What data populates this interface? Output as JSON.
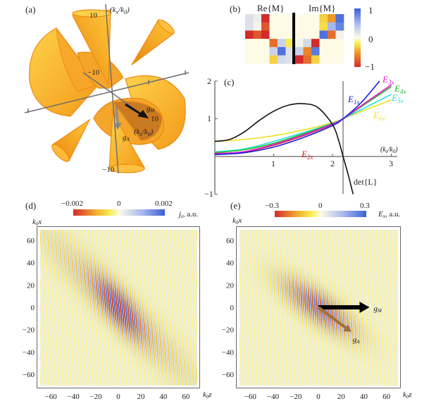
{
  "panel_a": {
    "label": "(a)",
    "axis_kx": {
      "main": "(k",
      "sub1": "x",
      "slash": "/k",
      "sub2": "0",
      "close": ")"
    },
    "axis_kz": {
      "main": "(k",
      "sub1": "z",
      "slash": "/k",
      "sub2": "0",
      "close": ")"
    },
    "tick_kx_pos": "10",
    "tick_kx_neg": "−10",
    "tick_kz_pos": "10",
    "tick_mid_neg": "−10",
    "gM": {
      "main": "g",
      "sub": "M"
    },
    "gA": {
      "main": "g",
      "sub": "A"
    },
    "colors": {
      "surface": "#f5a623",
      "surface_light": "#ffcc44",
      "edge": "#ee8a10",
      "axis": "#6e6e6e"
    }
  },
  "chart_data": [
    {
      "type": "heatmap",
      "panel": "(b)",
      "titles": [
        "Re{M}",
        "Im{M}"
      ],
      "colorbar": {
        "min": -1,
        "max": 1,
        "ticks": [
          "1",
          "0",
          "−1"
        ]
      },
      "re": [
        [
          0.2,
          0.1,
          -1,
          0,
          0,
          0
        ],
        [
          0.2,
          0.05,
          -0.8,
          0,
          0,
          0
        ],
        [
          -1,
          -0.8,
          -1,
          0,
          0,
          0
        ],
        [
          0,
          0,
          0,
          -0.7,
          0.3,
          -0.2
        ],
        [
          0,
          0,
          0,
          0.3,
          0.9,
          0.2
        ],
        [
          0,
          0,
          0,
          -0.3,
          0.25,
          0.2
        ]
      ],
      "im": [
        [
          0,
          0,
          0,
          -0.3,
          -0.5,
          0.9
        ],
        [
          0,
          0,
          0,
          -0.25,
          0.5,
          0.8
        ],
        [
          0,
          0,
          0,
          0.9,
          -0.7,
          0.05
        ],
        [
          0.05,
          0.25,
          -1,
          0,
          0,
          0
        ],
        [
          0.3,
          -0.6,
          0.85,
          0,
          0,
          0
        ],
        [
          -1,
          -0.7,
          -0.3,
          0,
          0,
          0
        ]
      ]
    },
    {
      "type": "line",
      "panel": "(c)",
      "xlabel": {
        "main": "(k",
        "sub1": "z",
        "slash": "/k",
        "sub2": "0",
        "close": ")"
      },
      "xlim": [
        0,
        3.1
      ],
      "ylim": [
        -1,
        2
      ],
      "xticks": [
        "1",
        "2",
        "3"
      ],
      "yticks": [
        "2",
        "1",
        "−1"
      ],
      "vline_x": 2.18,
      "series": [
        {
          "name": "det{L}",
          "color": "#111111",
          "x": [
            0,
            0.25,
            0.5,
            0.75,
            1,
            1.25,
            1.5,
            1.75,
            2,
            2.1,
            2.18,
            2.27,
            2.35
          ],
          "y": [
            0.4,
            0.45,
            0.65,
            0.95,
            1.2,
            1.36,
            1.4,
            1.3,
            0.85,
            0.45,
            0,
            -0.5,
            -1
          ]
        },
        {
          "name": "E1x",
          "label": {
            "main": "E",
            "sub": "1x"
          },
          "color": "#1a1adc",
          "x": [
            0,
            0.5,
            1,
            1.5,
            2,
            2.18,
            2.5,
            2.8
          ],
          "y": [
            0.05,
            0.1,
            0.25,
            0.5,
            0.82,
            1,
            1.45,
            2.0
          ]
        },
        {
          "name": "E2x",
          "label": {
            "main": "E",
            "sub": "2x"
          },
          "color": "#d42020",
          "x": [
            0,
            0.5,
            1,
            1.5,
            2,
            2.18,
            2.5,
            3
          ],
          "y": [
            0.08,
            0.12,
            0.3,
            0.55,
            0.85,
            1,
            1.36,
            1.9
          ]
        },
        {
          "name": "E3x",
          "label": {
            "main": "E",
            "sub": "3x"
          },
          "color": "#e020e0",
          "x": [
            0,
            0.5,
            1,
            1.5,
            2,
            2.18,
            2.5,
            3
          ],
          "y": [
            0.07,
            0.13,
            0.32,
            0.57,
            0.86,
            1,
            1.35,
            1.9
          ]
        },
        {
          "name": "E4x",
          "label": {
            "main": "E",
            "sub": "4x"
          },
          "color": "#22c022",
          "x": [
            0,
            0.5,
            1,
            1.5,
            2,
            2.18,
            2.5,
            3
          ],
          "y": [
            0.1,
            0.18,
            0.35,
            0.6,
            0.87,
            1,
            1.33,
            1.85
          ]
        },
        {
          "name": "E5x",
          "label": {
            "main": "E",
            "sub": "5x"
          },
          "color": "#20e0e0",
          "x": [
            0,
            0.5,
            1,
            1.5,
            2,
            2.18,
            2.5,
            3
          ],
          "y": [
            0.12,
            0.2,
            0.4,
            0.63,
            0.88,
            1,
            1.25,
            1.65
          ]
        },
        {
          "name": "E6x",
          "label": {
            "main": "E",
            "sub": "6x"
          },
          "color": "#f0e020",
          "x": [
            0,
            0.5,
            1,
            1.5,
            2,
            2.18,
            2.5,
            3
          ],
          "y": [
            0.4,
            0.45,
            0.55,
            0.7,
            0.9,
            1,
            1.2,
            1.5
          ]
        }
      ]
    },
    {
      "type": "heatmap",
      "panel": "(d)",
      "xlabel": {
        "main": "k",
        "sub": "0",
        "var": "z"
      },
      "ylabel": {
        "main": "k",
        "sub": "0",
        "var": "x"
      },
      "xlim": [
        -72,
        72
      ],
      "ylim": [
        -72,
        72
      ],
      "ticks": [
        "−60",
        "−40",
        "−20",
        "0",
        "20",
        "40",
        "60"
      ],
      "tick_values": [
        -60,
        -40,
        -20,
        0,
        20,
        40,
        60
      ],
      "colorbar": {
        "min": -0.002,
        "max": 0.002,
        "labels": [
          "−0.002",
          "0",
          "0.002"
        ],
        "quantity": {
          "main": "j",
          "sub": "z",
          "unit": ", a.u."
        }
      }
    },
    {
      "type": "heatmap",
      "panel": "(e)",
      "xlabel": {
        "main": "k",
        "sub": "0",
        "var": "z"
      },
      "ylabel": {
        "main": "k",
        "sub": "0",
        "var": "x"
      },
      "xlim": [
        -72,
        72
      ],
      "ylim": [
        -72,
        72
      ],
      "ticks": [
        "−60",
        "−40",
        "−20",
        "0",
        "20",
        "40",
        "60"
      ],
      "tick_values": [
        -60,
        -40,
        -20,
        0,
        20,
        40,
        60
      ],
      "colorbar": {
        "min": -0.3,
        "max": 0.3,
        "labels": [
          "−0.3",
          "0",
          "0.3"
        ],
        "quantity": {
          "main": "E",
          "sub": "x",
          "unit": ", a.u."
        }
      },
      "arrows": [
        {
          "label": {
            "main": "g",
            "sub": "M"
          },
          "color": "#000000",
          "from": [
            0,
            0
          ],
          "to": [
            45,
            0
          ]
        },
        {
          "label": {
            "main": "g",
            "sub": "A"
          },
          "color": "#a0703a",
          "from": [
            0,
            0
          ],
          "to": [
            29,
            -22
          ]
        }
      ]
    }
  ],
  "labels": {
    "b": "(b)",
    "c": "(c)",
    "d": "(d)",
    "e": "(e)"
  }
}
